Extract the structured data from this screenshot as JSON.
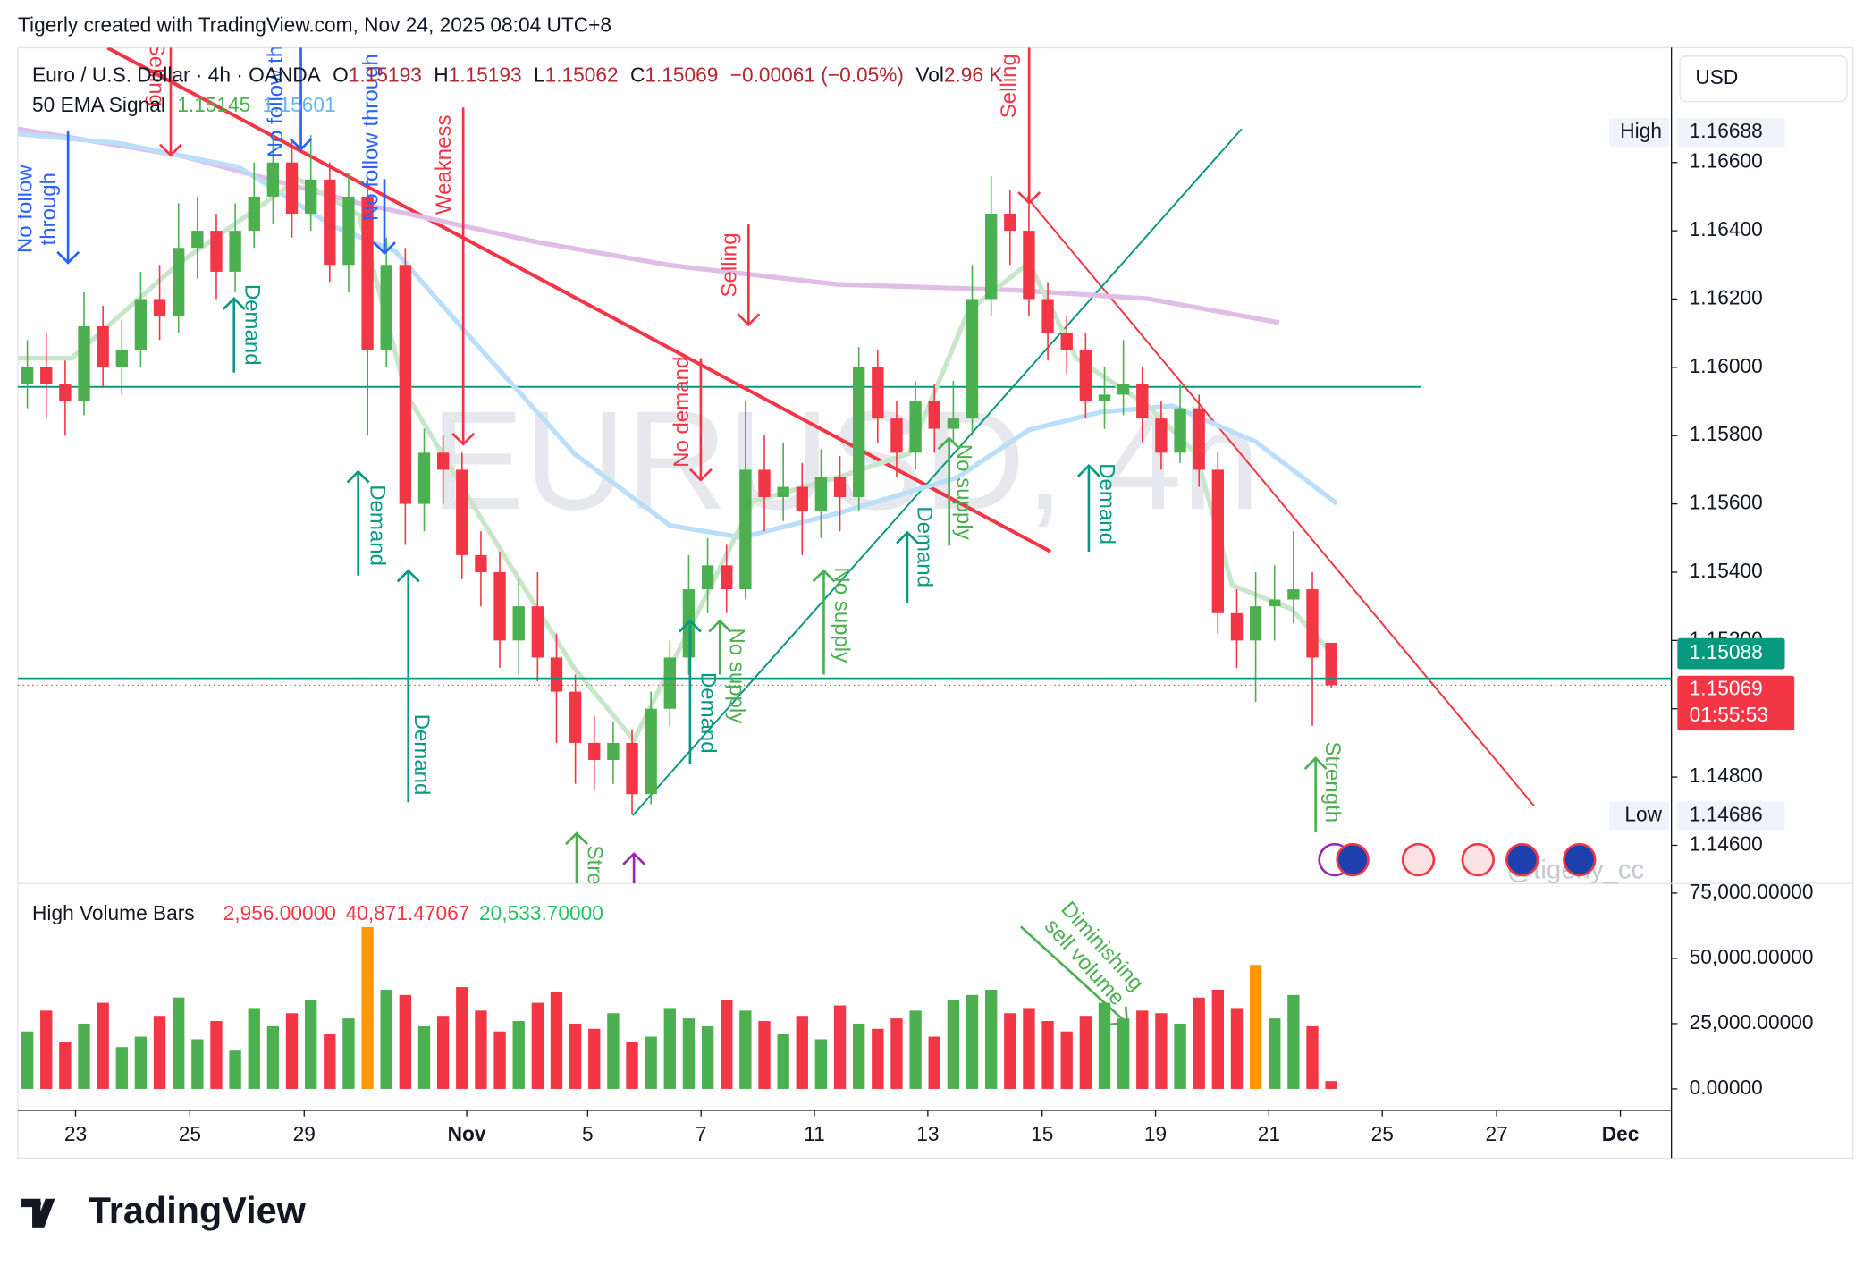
{
  "header": "Tigerly created with TradingView.com, Nov 24, 2025 08:04 UTC+8",
  "footer_logo": "TradingView",
  "chart_data": {
    "type": "candlestick",
    "symbol": "Euro / U.S. Dollar · 4h · OANDA",
    "ohlc_legend": {
      "o_label": "O",
      "open": 1.15193,
      "h_label": "H",
      "high": 1.15193,
      "l_label": "L",
      "low": 1.15062,
      "c_label": "C",
      "close": 1.15069,
      "change": "−0.00061 (−0.05%)",
      "vol_label": "Vol",
      "volume": "2.96 K"
    },
    "indicator": {
      "name": "50 EMA Signal",
      "values": [
        1.15145,
        1.15601
      ],
      "colors": [
        "#4caf50",
        "#64b5f6"
      ]
    },
    "watermark": "EURUSD, 4h",
    "currency": "USD",
    "handle": "@tigerly_cc",
    "up_color": "#4caf50",
    "down_color": "#f23645",
    "x": [
      1,
      3,
      5,
      7,
      9,
      11,
      13,
      15,
      17,
      19,
      21,
      23,
      25,
      27,
      29,
      31,
      33,
      35,
      37,
      39,
      41,
      43,
      45,
      47,
      49,
      51,
      53,
      55,
      57,
      59,
      61,
      63,
      65,
      67,
      69,
      71,
      73,
      75,
      77,
      79,
      81,
      83,
      85,
      87,
      89,
      91,
      93,
      95,
      97,
      99,
      101,
      103,
      105,
      107,
      109,
      111,
      113,
      115,
      117,
      119,
      121,
      123,
      125,
      127,
      129,
      131,
      133,
      135,
      137,
      139
    ],
    "ohlc": [
      [
        1.1595,
        1.1608,
        1.1588,
        1.16
      ],
      [
        1.16,
        1.161,
        1.1585,
        1.1595
      ],
      [
        1.1595,
        1.1602,
        1.158,
        1.159
      ],
      [
        1.159,
        1.1622,
        1.1586,
        1.1612
      ],
      [
        1.1612,
        1.1618,
        1.1594,
        1.16
      ],
      [
        1.16,
        1.1614,
        1.1592,
        1.1605
      ],
      [
        1.1605,
        1.1628,
        1.16,
        1.162
      ],
      [
        1.162,
        1.163,
        1.1608,
        1.1615
      ],
      [
        1.1615,
        1.1648,
        1.161,
        1.1635
      ],
      [
        1.1635,
        1.165,
        1.1626,
        1.164
      ],
      [
        1.164,
        1.1645,
        1.162,
        1.1628
      ],
      [
        1.1628,
        1.1648,
        1.1622,
        1.164
      ],
      [
        1.164,
        1.166,
        1.1635,
        1.165
      ],
      [
        1.165,
        1.1669,
        1.1642,
        1.166
      ],
      [
        1.166,
        1.1666,
        1.1638,
        1.1645
      ],
      [
        1.1645,
        1.1668,
        1.164,
        1.1655
      ],
      [
        1.1655,
        1.166,
        1.1625,
        1.163
      ],
      [
        1.163,
        1.1657,
        1.1622,
        1.165
      ],
      [
        1.165,
        1.1655,
        1.158,
        1.1605
      ],
      [
        1.1605,
        1.1638,
        1.16,
        1.163
      ],
      [
        1.163,
        1.1635,
        1.1548,
        1.156
      ],
      [
        1.156,
        1.1582,
        1.1552,
        1.1575
      ],
      [
        1.1575,
        1.158,
        1.156,
        1.157
      ],
      [
        1.157,
        1.1575,
        1.1538,
        1.1545
      ],
      [
        1.1545,
        1.1552,
        1.153,
        1.154
      ],
      [
        1.154,
        1.1546,
        1.1512,
        1.152
      ],
      [
        1.152,
        1.1538,
        1.151,
        1.153
      ],
      [
        1.153,
        1.154,
        1.1508,
        1.1515
      ],
      [
        1.1515,
        1.1522,
        1.149,
        1.1505
      ],
      [
        1.1505,
        1.151,
        1.1478,
        1.149
      ],
      [
        1.149,
        1.1498,
        1.1476,
        1.1485
      ],
      [
        1.1485,
        1.1496,
        1.1478,
        1.149
      ],
      [
        1.149,
        1.1494,
        1.1469,
        1.1475
      ],
      [
        1.1475,
        1.1505,
        1.1472,
        1.15
      ],
      [
        1.15,
        1.152,
        1.1495,
        1.1515
      ],
      [
        1.1515,
        1.1545,
        1.151,
        1.1535
      ],
      [
        1.1535,
        1.155,
        1.1528,
        1.1542
      ],
      [
        1.1542,
        1.1548,
        1.1528,
        1.1535
      ],
      [
        1.1535,
        1.159,
        1.1532,
        1.157
      ],
      [
        1.157,
        1.158,
        1.1552,
        1.1562
      ],
      [
        1.1562,
        1.1578,
        1.1555,
        1.1565
      ],
      [
        1.1565,
        1.1572,
        1.1545,
        1.1558
      ],
      [
        1.1558,
        1.1576,
        1.155,
        1.1568
      ],
      [
        1.1568,
        1.1574,
        1.1552,
        1.1562
      ],
      [
        1.1562,
        1.1606,
        1.1558,
        1.16
      ],
      [
        1.16,
        1.1605,
        1.1578,
        1.1585
      ],
      [
        1.1585,
        1.159,
        1.1568,
        1.1575
      ],
      [
        1.1575,
        1.1596,
        1.157,
        1.159
      ],
      [
        1.159,
        1.1595,
        1.1575,
        1.1582
      ],
      [
        1.1582,
        1.1596,
        1.1578,
        1.1585
      ],
      [
        1.1585,
        1.163,
        1.158,
        1.162
      ],
      [
        1.162,
        1.1656,
        1.1615,
        1.1645
      ],
      [
        1.1645,
        1.1652,
        1.163,
        1.164
      ],
      [
        1.164,
        1.1648,
        1.1615,
        1.162
      ],
      [
        1.162,
        1.1625,
        1.1602,
        1.161
      ],
      [
        1.161,
        1.1615,
        1.1598,
        1.1605
      ],
      [
        1.1605,
        1.161,
        1.1585,
        1.159
      ],
      [
        1.159,
        1.16,
        1.1582,
        1.1592
      ],
      [
        1.1592,
        1.1608,
        1.1586,
        1.1595
      ],
      [
        1.1595,
        1.16,
        1.1578,
        1.1585
      ],
      [
        1.1585,
        1.159,
        1.157,
        1.1575
      ],
      [
        1.1575,
        1.1595,
        1.1572,
        1.1588
      ],
      [
        1.1588,
        1.1592,
        1.1565,
        1.157
      ],
      [
        1.157,
        1.1575,
        1.1522,
        1.1528
      ],
      [
        1.1528,
        1.1535,
        1.1512,
        1.152
      ],
      [
        1.152,
        1.154,
        1.1502,
        1.153
      ],
      [
        1.153,
        1.1542,
        1.152,
        1.1532
      ],
      [
        1.1532,
        1.1552,
        1.1525,
        1.1535
      ],
      [
        1.1535,
        1.154,
        1.1495,
        1.1515
      ],
      [
        1.15193,
        1.15193,
        1.15062,
        1.15069
      ]
    ],
    "xlim": [
      0,
      175
    ],
    "xticks": [
      {
        "value": 6.1,
        "label": "23"
      },
      {
        "value": 18.2,
        "label": "25"
      },
      {
        "value": 30.3,
        "label": "29"
      },
      {
        "value": 47.5,
        "label": "Nov"
      },
      {
        "value": 60.3,
        "label": "5"
      },
      {
        "value": 72.3,
        "label": "7"
      },
      {
        "value": 84.3,
        "label": "11"
      },
      {
        "value": 96.3,
        "label": "13"
      },
      {
        "value": 108.4,
        "label": "15"
      },
      {
        "value": 120.4,
        "label": "19"
      },
      {
        "value": 132.4,
        "label": "21"
      },
      {
        "value": 144.4,
        "label": "25"
      },
      {
        "value": 156.5,
        "label": "27"
      },
      {
        "value": 169.6,
        "label": "Dec"
      }
    ],
    "ylim": [
      1.14488,
      1.16936
    ],
    "yticks": [
      {
        "value": 1.146,
        "label": "1.14600"
      },
      {
        "value": 1.148,
        "label": "1.14800"
      },
      {
        "value": 1.15,
        "label": "1.15000"
      },
      {
        "value": 1.152,
        "label": "1.15200"
      },
      {
        "value": 1.154,
        "label": "1.15400"
      },
      {
        "value": 1.156,
        "label": "1.15600"
      },
      {
        "value": 1.158,
        "label": "1.15800"
      },
      {
        "value": 1.16,
        "label": "1.16000"
      },
      {
        "value": 1.162,
        "label": "1.16200"
      },
      {
        "value": 1.164,
        "label": "1.16400"
      },
      {
        "value": 1.166,
        "label": "1.16600"
      }
    ],
    "ema_lines": [
      {
        "color": "#e1bee7",
        "x": [
          0,
          17.1,
          36.1,
          55.1,
          69,
          86.7,
          105.7,
          119.6,
          133.5
        ],
        "values": [
          1.16698,
          1.16621,
          1.16481,
          1.16366,
          1.16299,
          1.16243,
          1.16226,
          1.16201,
          1.16131
        ]
      },
      {
        "color": "#bbdefb",
        "x": [
          0,
          10.8,
          23.4,
          33.5,
          39.9,
          48.7,
          58.9,
          69,
          76.6,
          86.7,
          99.4,
          107,
          114.6,
          122.2,
          131,
          139.6
        ],
        "values": [
          1.16684,
          1.16656,
          1.16586,
          1.16411,
          1.16341,
          1.16062,
          1.15747,
          1.15537,
          1.15502,
          1.15572,
          1.15677,
          1.15817,
          1.15869,
          1.15887,
          1.15782,
          1.15601
        ]
      },
      {
        "color": "#c8e6c9",
        "x": [
          0,
          5.7,
          17.1,
          29.7,
          36.1,
          41.1,
          48.7,
          58.9,
          65.2,
          71.5,
          77.8,
          86.7,
          94.3,
          100.6,
          107,
          112,
          119.6,
          124.7,
          128.5,
          134.8,
          139.6
        ],
        "values": [
          1.16027,
          1.16027,
          1.16306,
          1.16551,
          1.16446,
          1.15922,
          1.15572,
          1.15118,
          1.14908,
          1.15257,
          1.15607,
          1.15677,
          1.15747,
          1.16166,
          1.16306,
          1.16027,
          1.15887,
          1.15747,
          1.15362,
          1.15292,
          1.15145
        ]
      }
    ],
    "high": {
      "label": "High",
      "value": 1.16688
    },
    "low": {
      "label": "Low",
      "value": 1.14686
    },
    "last_price": {
      "value": 1.15088,
      "color": "#089981"
    },
    "close_price": {
      "value": 1.15069,
      "color": "#f23645",
      "countdown": "01:55:53"
    },
    "annotations": [
      {
        "lines": [
          "No follow",
          "through"
        ],
        "color": "#2962ff"
      },
      {
        "lines": [
          "Selling"
        ],
        "color": "#f23645"
      },
      {
        "lines": [
          "No follow through"
        ],
        "color": "#2962ff"
      },
      {
        "lines": [
          "No follow through"
        ],
        "color": "#2962ff"
      },
      {
        "lines": [
          "Weakness"
        ],
        "color": "#f23645"
      },
      {
        "lines": [
          "Demand"
        ],
        "color": "#089981"
      },
      {
        "lines": [
          "Demand"
        ],
        "color": "#089981"
      },
      {
        "lines": [
          "Demand"
        ],
        "color": "#089981"
      },
      {
        "lines": [
          "Selling"
        ],
        "color": "#f23645"
      },
      {
        "lines": [
          "No demand"
        ],
        "color": "#f23645"
      },
      {
        "lines": [
          "Strength"
        ],
        "color": "#4caf50"
      },
      {
        "lines": [
          "Demand"
        ],
        "color": "#089981"
      },
      {
        "lines": [
          "No supply"
        ],
        "color": "#4caf50"
      },
      {
        "lines": [
          "No supply"
        ],
        "color": "#4caf50"
      },
      {
        "lines": [
          "Demand"
        ],
        "color": "#089981"
      },
      {
        "lines": [
          "No supply"
        ],
        "color": "#4caf50"
      },
      {
        "lines": [
          "Selling"
        ],
        "color": "#f23645"
      },
      {
        "lines": [
          "Demand"
        ],
        "color": "#089981"
      },
      {
        "lines": [
          "Strength"
        ],
        "color": "#4caf50"
      },
      {
        "lines": [
          "Diminishing",
          "sell volume"
        ],
        "color": "#4caf50"
      }
    ],
    "volume": {
      "title": "High Volume Bars",
      "legend": [
        {
          "value": 2956,
          "label": "2,956.00000",
          "color": "#f23645"
        },
        {
          "value": 40871.47067,
          "label": "40,871.47067",
          "color": "#f23645"
        },
        {
          "value": 20533.7,
          "label": "20,533.70000",
          "color": "#22c55e"
        }
      ],
      "values": [
        22000,
        30000,
        18000,
        25000,
        33000,
        16000,
        20000,
        28000,
        35000,
        19000,
        26000,
        15000,
        31000,
        24000,
        29000,
        34000,
        21000,
        27000,
        62000,
        38000,
        36000,
        24000,
        28000,
        39000,
        30000,
        22000,
        26000,
        33000,
        37000,
        25000,
        23000,
        29000,
        18000,
        20000,
        31000,
        27000,
        24000,
        34000,
        30000,
        26000,
        21000,
        28000,
        19000,
        32000,
        25000,
        23000,
        27000,
        30000,
        20000,
        34000,
        36000,
        38000,
        29000,
        31000,
        26000,
        22000,
        28000,
        33000,
        27000,
        30000,
        29000,
        25000,
        35000,
        38000,
        31000,
        47500,
        27000,
        36000,
        24000,
        3000
      ],
      "highlight_color": "#ff9800",
      "ylim": [
        -8232,
        78659
      ],
      "yticks": [
        {
          "value": 0,
          "label": "0.00000"
        },
        {
          "value": 25000,
          "label": "25,000.00000"
        },
        {
          "value": 50000,
          "label": "50,000.00000"
        },
        {
          "value": 75000,
          "label": "75,000.00000"
        }
      ],
      "lines": [
        {
          "color": "#f23645",
          "x": [
            0,
            18.4,
            36.1,
            61.4,
            85.4,
            86.7,
            124.7,
            132.3,
            139.6
          ],
          "values": [
            57165,
            51220,
            48933,
            46646,
            44360,
            39329,
            34756,
            38415,
            40871
          ]
        },
        {
          "color": "#22c55e",
          "x": [
            0,
            23.4,
            61.4,
            99.4,
            124.7,
            139.6
          ],
          "values": [
            28354,
            26067,
            23780,
            22866,
            21951,
            20534
          ]
        }
      ]
    }
  }
}
